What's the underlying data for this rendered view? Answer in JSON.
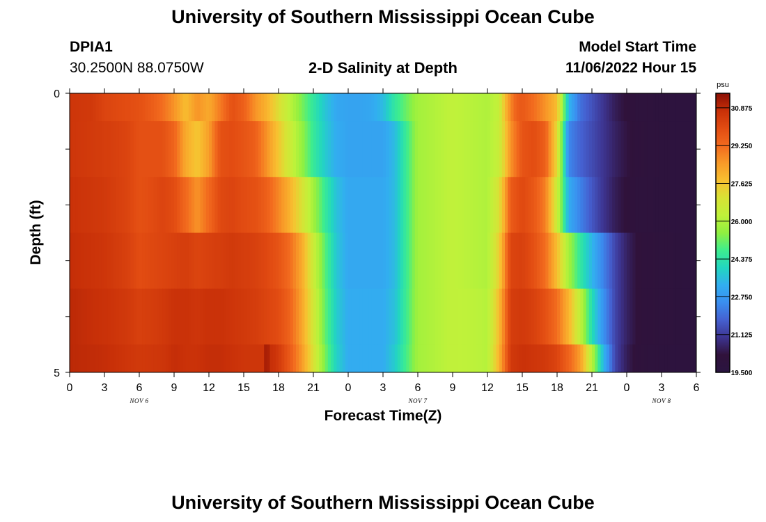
{
  "header": {
    "title": "University of Southern Mississippi Ocean Cube",
    "station": "DPIA1",
    "coords": "30.2500N  88.0750W",
    "subtitle": "2-D Salinity at Depth",
    "model_start_label": "Model Start Time",
    "model_start_value": "11/06/2022 Hour 15"
  },
  "footer": {
    "title": "University of Southern Mississippi Ocean Cube"
  },
  "chart_data": {
    "type": "heatmap",
    "xlabel": "Forecast Time(Z)",
    "ylabel": "Depth (ft)",
    "x_tick_labels": [
      "0",
      "3",
      "6",
      "9",
      "12",
      "15",
      "18",
      "21",
      "0",
      "3",
      "6",
      "9",
      "12",
      "15",
      "18",
      "21",
      "0",
      "3",
      "6"
    ],
    "date_labels": [
      "NOV 6",
      "NOV 7",
      "NOV 8"
    ],
    "y_tick_labels": [
      "0",
      "5"
    ],
    "ylim": [
      0,
      5
    ],
    "colorbar": {
      "unit": "psu",
      "ticks": [
        "30.875",
        "29.250",
        "27.625",
        "26.000",
        "24.375",
        "22.750",
        "21.125",
        "19.500"
      ],
      "min": 19.5,
      "max": 31.5,
      "colors": [
        "#2a1440",
        "#30123b",
        "#3d3490",
        "#4560d0",
        "#3a8ef0",
        "#32aef0",
        "#22d6c0",
        "#3eed8e",
        "#90f040",
        "#bff23a",
        "#d8e235",
        "#f8c030",
        "#f89a28",
        "#f26a1e",
        "#e24c12",
        "#c83008",
        "#8a0e04"
      ]
    },
    "layer_depths_ft": [
      0,
      0.5,
      1.5,
      2.5,
      3.5,
      4.5
    ],
    "time_hours": [
      0,
      3,
      6,
      9,
      12,
      15,
      18,
      21,
      24,
      27,
      30,
      33,
      36,
      39,
      42,
      45,
      48,
      51,
      54
    ],
    "layer_profiles": [
      {
        "depth_ft": 0.25,
        "times": [
          0,
          2,
          3,
          5,
          6,
          7,
          8,
          9,
          10,
          11,
          12,
          13,
          14,
          15,
          16,
          17,
          18,
          19,
          20,
          21,
          22,
          23,
          24,
          25,
          26,
          27,
          28,
          30,
          33,
          35,
          36,
          37,
          37.5,
          38,
          38.5,
          39,
          40,
          41,
          42,
          43,
          44,
          45,
          46,
          47,
          48,
          49,
          51,
          54
        ],
        "values": [
          30.6,
          30.5,
          30.2,
          30.0,
          29.9,
          29.6,
          29.2,
          28.6,
          27.8,
          28.6,
          28.2,
          29.0,
          29.9,
          29.5,
          28.6,
          28.0,
          27.1,
          26.2,
          25.3,
          24.5,
          23.7,
          23.1,
          23.0,
          23.0,
          23.1,
          23.5,
          24.5,
          25.8,
          26.3,
          26.1,
          26.0,
          26.4,
          27.8,
          28.8,
          29.5,
          29.7,
          29.2,
          28.6,
          27.8,
          23.4,
          22.0,
          21.5,
          21.0,
          20.5,
          20.2,
          20.0,
          19.9,
          19.8
        ]
      },
      {
        "depth_ft": 1.0,
        "times": [
          0,
          3,
          5,
          6,
          8,
          9,
          10,
          11,
          12,
          13,
          14,
          15,
          16,
          17,
          18,
          19,
          20,
          21,
          22,
          23,
          24,
          27,
          28,
          30,
          33,
          35,
          36,
          37,
          38,
          39,
          40,
          41,
          42,
          43,
          44,
          45,
          46,
          47,
          48,
          49,
          51,
          54
        ],
        "values": [
          30.6,
          30.4,
          30.2,
          29.9,
          29.9,
          29.4,
          28.2,
          27.6,
          28.4,
          29.9,
          30.0,
          29.8,
          29.5,
          28.6,
          27.6,
          26.6,
          25.6,
          24.6,
          23.8,
          23.2,
          23.0,
          23.0,
          23.5,
          25.8,
          26.3,
          26.1,
          26.0,
          26.5,
          28.6,
          29.8,
          30.0,
          29.5,
          27.2,
          22.4,
          21.8,
          21.4,
          21.0,
          20.6,
          20.3,
          20.1,
          19.9,
          19.8
        ]
      },
      {
        "depth_ft": 2.0,
        "times": [
          0,
          3,
          5,
          6,
          7,
          8,
          9,
          10,
          11,
          12,
          13,
          14,
          15,
          16,
          17,
          18,
          19,
          20,
          21,
          22,
          23,
          24,
          27,
          28,
          30,
          33,
          35,
          36,
          37,
          38,
          39,
          40,
          41,
          42,
          43,
          44,
          45,
          46,
          47,
          48,
          49,
          51,
          54
        ],
        "values": [
          30.7,
          30.5,
          30.2,
          29.9,
          30.0,
          30.2,
          30.0,
          29.3,
          28.6,
          29.3,
          30.1,
          30.2,
          30.0,
          29.9,
          29.5,
          28.8,
          28.0,
          27.0,
          25.8,
          24.6,
          23.6,
          23.1,
          23.1,
          23.5,
          25.8,
          26.3,
          26.1,
          26.0,
          27.0,
          29.6,
          30.1,
          29.7,
          28.9,
          26.6,
          23.2,
          22.3,
          21.6,
          21.0,
          20.5,
          20.2,
          20.0,
          19.9,
          19.8
        ]
      },
      {
        "depth_ft": 3.0,
        "times": [
          0,
          3,
          5,
          6,
          8,
          9,
          10,
          11,
          12,
          13,
          14,
          15,
          16,
          17,
          18,
          19,
          20,
          21,
          22,
          23,
          24,
          27,
          28,
          30,
          33,
          35,
          36,
          37,
          38,
          39,
          40,
          41,
          42,
          43,
          44,
          45,
          46,
          47,
          48,
          49,
          51,
          54
        ],
        "values": [
          30.8,
          30.6,
          30.3,
          30.0,
          30.2,
          30.3,
          30.4,
          30.2,
          30.3,
          30.4,
          30.5,
          30.4,
          30.3,
          30.1,
          29.8,
          29.2,
          28.2,
          26.6,
          25.0,
          23.7,
          23.1,
          23.1,
          23.5,
          25.8,
          26.3,
          26.1,
          26.0,
          27.4,
          30.2,
          30.3,
          29.9,
          29.2,
          27.8,
          25.8,
          24.5,
          23.4,
          22.3,
          21.3,
          20.6,
          20.2,
          20.0,
          19.8
        ]
      },
      {
        "depth_ft": 4.0,
        "times": [
          0,
          3,
          5,
          6,
          8,
          9,
          10,
          11,
          12,
          13,
          14,
          15,
          16,
          17,
          18,
          19,
          20,
          21,
          22,
          23,
          24,
          27,
          28,
          30,
          33,
          35,
          36,
          37,
          38,
          39,
          40,
          41,
          42,
          43,
          44,
          45,
          46,
          47,
          48,
          49,
          51,
          54
        ],
        "values": [
          30.9,
          30.7,
          30.5,
          30.3,
          30.5,
          30.7,
          30.7,
          30.6,
          30.7,
          30.7,
          30.6,
          30.5,
          30.4,
          30.2,
          30.0,
          29.4,
          28.3,
          26.8,
          25.1,
          23.8,
          23.2,
          23.2,
          23.6,
          25.8,
          26.3,
          26.2,
          26.1,
          27.8,
          30.4,
          30.5,
          30.3,
          29.9,
          29.2,
          28.0,
          26.3,
          24.2,
          22.6,
          21.3,
          20.6,
          20.2,
          20.0,
          19.8
        ]
      },
      {
        "depth_ft": 4.75,
        "times": [
          0,
          3,
          5,
          6,
          8,
          9,
          10,
          11,
          12,
          13,
          14,
          15,
          16,
          16.7,
          17,
          17.2,
          17.6,
          18,
          19,
          20,
          21,
          22,
          23,
          24,
          27,
          28,
          30,
          33,
          35,
          36,
          37,
          38,
          39,
          40,
          41,
          42,
          43,
          44,
          45,
          46,
          47,
          48,
          49,
          51,
          54
        ],
        "values": [
          30.9,
          30.8,
          30.6,
          30.5,
          30.6,
          30.8,
          30.7,
          30.7,
          30.8,
          30.8,
          30.7,
          30.6,
          30.6,
          30.6,
          31.5,
          30.8,
          30.7,
          30.5,
          29.6,
          28.5,
          27.0,
          25.3,
          23.9,
          23.2,
          23.2,
          23.8,
          25.8,
          26.3,
          26.2,
          26.1,
          28.0,
          30.5,
          30.7,
          30.6,
          30.5,
          30.2,
          29.4,
          28.4,
          26.2,
          23.4,
          21.3,
          20.5,
          20.1,
          19.9,
          19.8
        ]
      }
    ]
  }
}
